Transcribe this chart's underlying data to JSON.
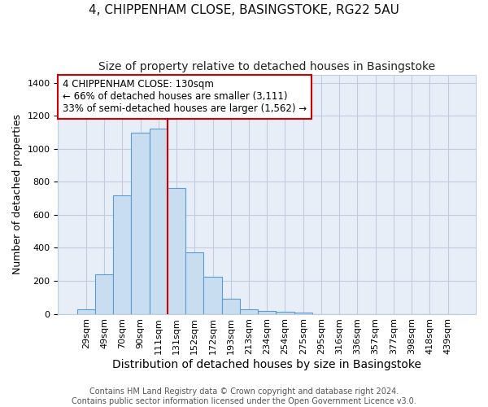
{
  "title1": "4, CHIPPENHAM CLOSE, BASINGSTOKE, RG22 5AU",
  "title2": "Size of property relative to detached houses in Basingstoke",
  "xlabel": "Distribution of detached houses by size in Basingstoke",
  "ylabel": "Number of detached properties",
  "categories": [
    "29sqm",
    "49sqm",
    "70sqm",
    "90sqm",
    "111sqm",
    "131sqm",
    "152sqm",
    "172sqm",
    "193sqm",
    "213sqm",
    "234sqm",
    "254sqm",
    "275sqm",
    "295sqm",
    "316sqm",
    "336sqm",
    "357sqm",
    "377sqm",
    "398sqm",
    "418sqm",
    "439sqm"
  ],
  "values": [
    30,
    240,
    720,
    1100,
    1120,
    760,
    375,
    225,
    90,
    30,
    20,
    15,
    10,
    0,
    0,
    0,
    0,
    0,
    0,
    0,
    0
  ],
  "bar_color": "#c9ddf0",
  "bar_edge_color": "#5b9bd5",
  "vline_color": "#cc0000",
  "annotation_text": "4 CHIPPENHAM CLOSE: 130sqm\n← 66% of detached houses are smaller (3,111)\n33% of semi-detached houses are larger (1,562) →",
  "annotation_box_color": "#ffffff",
  "annotation_box_edge": "#cc0000",
  "ylim": [
    0,
    1450
  ],
  "yticks": [
    0,
    200,
    400,
    600,
    800,
    1000,
    1200,
    1400
  ],
  "footer1": "Contains HM Land Registry data © Crown copyright and database right 2024.",
  "footer2": "Contains public sector information licensed under the Open Government Licence v3.0.",
  "bg_color": "#ffffff",
  "plot_bg_color": "#e8eef8",
  "grid_color": "#c0cce0",
  "title1_fontsize": 11,
  "title2_fontsize": 10,
  "xlabel_fontsize": 10,
  "ylabel_fontsize": 9,
  "tick_fontsize": 8,
  "footer_fontsize": 7,
  "annotation_fontsize": 8.5
}
